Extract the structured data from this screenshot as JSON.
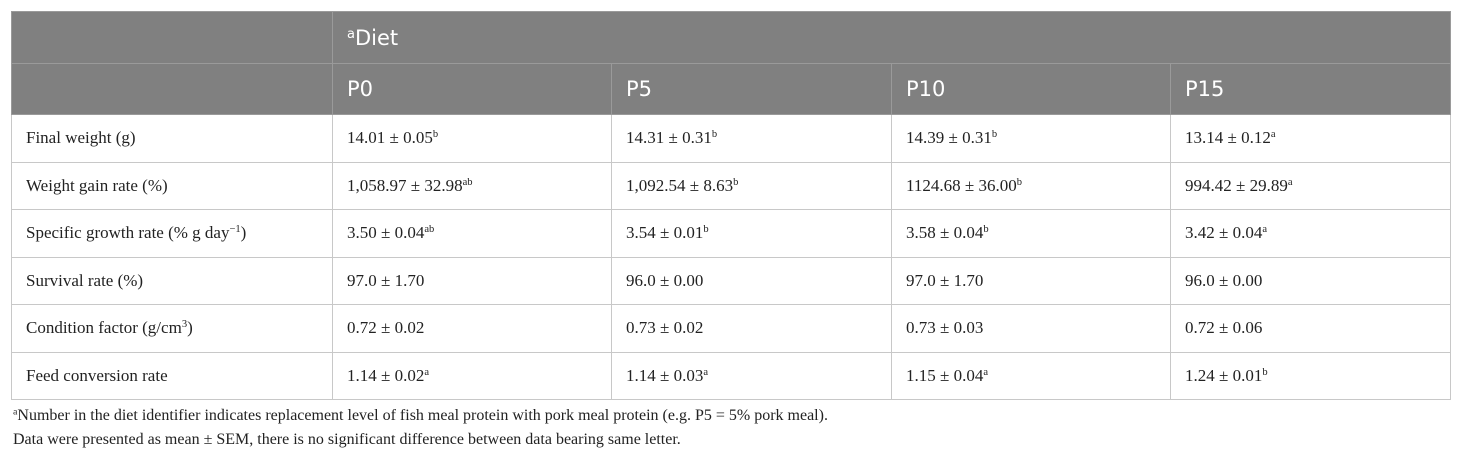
{
  "table": {
    "group_header": {
      "sup": "a",
      "text": "Diet"
    },
    "columns": [
      "P0",
      "P5",
      "P10",
      "P15"
    ],
    "rows": [
      {
        "label": {
          "text": "Final weight (g)"
        },
        "cells": [
          {
            "text": "14.01 ± 0.05",
            "sup": "b"
          },
          {
            "text": "14.31 ± 0.31",
            "sup": "b"
          },
          {
            "text": "14.39 ± 0.31",
            "sup": "b"
          },
          {
            "text": "13.14 ± 0.12",
            "sup": "a"
          }
        ]
      },
      {
        "label": {
          "text": "Weight gain rate (%)"
        },
        "cells": [
          {
            "text": "1,058.97 ± 32.98",
            "sup": "ab"
          },
          {
            "text": "1,092.54 ± 8.63",
            "sup": "b"
          },
          {
            "text": "1124.68 ± 36.00",
            "sup": "b"
          },
          {
            "text": "994.42 ± 29.89",
            "sup": "a"
          }
        ]
      },
      {
        "label": {
          "text": "Specific growth rate (% g day",
          "sup": "−1",
          "tail": ")"
        },
        "cells": [
          {
            "text": "3.50 ± 0.04",
            "sup": "ab"
          },
          {
            "text": "3.54 ± 0.01",
            "sup": "b"
          },
          {
            "text": "3.58 ± 0.04",
            "sup": "b"
          },
          {
            "text": "3.42 ± 0.04",
            "sup": "a"
          }
        ]
      },
      {
        "label": {
          "text": "Survival rate (%)"
        },
        "cells": [
          {
            "text": "97.0 ± 1.70"
          },
          {
            "text": "96.0 ± 0.00"
          },
          {
            "text": "97.0 ± 1.70"
          },
          {
            "text": "96.0 ± 0.00"
          }
        ]
      },
      {
        "label": {
          "text": "Condition factor (g/cm",
          "sup": "3",
          "tail": ")"
        },
        "cells": [
          {
            "text": "0.72 ± 0.02"
          },
          {
            "text": "0.73 ± 0.02"
          },
          {
            "text": "0.73 ± 0.03"
          },
          {
            "text": "0.72 ± 0.06"
          }
        ]
      },
      {
        "label": {
          "text": "Feed conversion rate"
        },
        "cells": [
          {
            "text": "1.14 ± 0.02",
            "sup": "a"
          },
          {
            "text": "1.14 ± 0.03",
            "sup": "a"
          },
          {
            "text": "1.15 ± 0.04",
            "sup": "a"
          },
          {
            "text": "1.24 ± 0.01",
            "sup": "b"
          }
        ]
      }
    ]
  },
  "footnotes": [
    {
      "sup": "a",
      "text": "Number in the diet identifier indicates replacement level of fish meal protein with pork meal protein (e.g. P5 = 5% pork meal)."
    },
    {
      "text": "Data were presented as mean ± SEM, there is no significant difference between data bearing same letter."
    }
  ]
}
